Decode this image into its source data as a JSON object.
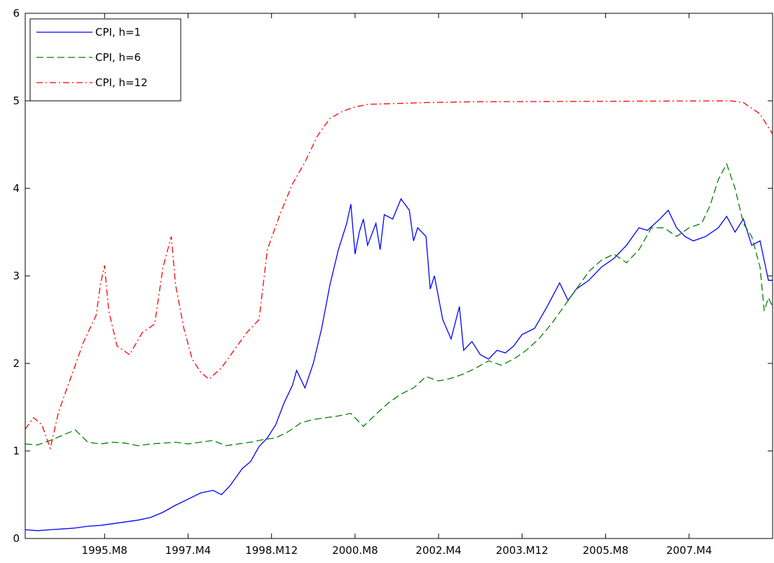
{
  "chart_data": {
    "type": "line",
    "x_tick_labels": [
      "1995.M8",
      "1997.M4",
      "1998.M12",
      "2000.M8",
      "2002.M4",
      "2003.M12",
      "2005.M8",
      "2007.M4"
    ],
    "x_tick_months": [
      "1995-08",
      "1997-04",
      "1998-12",
      "2000-08",
      "2002-04",
      "2003-12",
      "2005-08",
      "2007-04"
    ],
    "xlim": [
      "1994-01",
      "2008-12"
    ],
    "ylim": [
      0,
      6
    ],
    "y_ticks": [
      "0",
      "1",
      "2",
      "3",
      "4",
      "5",
      "6"
    ],
    "grid": false,
    "legend_position": "top-left",
    "series": [
      {
        "name": "CPI, h=1",
        "color": "#0000ff",
        "dash": "solid",
        "points": [
          [
            "1994-01",
            0.1
          ],
          [
            "1994-04",
            0.09
          ],
          [
            "1994-07",
            0.1
          ],
          [
            "1994-10",
            0.11
          ],
          [
            "1995-01",
            0.12
          ],
          [
            "1995-04",
            0.14
          ],
          [
            "1995-07",
            0.15
          ],
          [
            "1995-10",
            0.17
          ],
          [
            "1996-01",
            0.19
          ],
          [
            "1996-04",
            0.21
          ],
          [
            "1996-07",
            0.24
          ],
          [
            "1996-10",
            0.3
          ],
          [
            "1997-01",
            0.38
          ],
          [
            "1997-04",
            0.45
          ],
          [
            "1997-07",
            0.52
          ],
          [
            "1997-10",
            0.55
          ],
          [
            "1997-12",
            0.5
          ],
          [
            "1998-02",
            0.6
          ],
          [
            "1998-05",
            0.8
          ],
          [
            "1998-07",
            0.88
          ],
          [
            "1998-09",
            1.05
          ],
          [
            "1998-11",
            1.15
          ],
          [
            "1999-01",
            1.3
          ],
          [
            "1999-03",
            1.55
          ],
          [
            "1999-05",
            1.75
          ],
          [
            "1999-06",
            1.92
          ],
          [
            "1999-08",
            1.72
          ],
          [
            "1999-10",
            2.0
          ],
          [
            "1999-12",
            2.4
          ],
          [
            "2000-02",
            2.9
          ],
          [
            "2000-04",
            3.3
          ],
          [
            "2000-06",
            3.6
          ],
          [
            "2000-07",
            3.82
          ],
          [
            "2000-08",
            3.25
          ],
          [
            "2000-09",
            3.5
          ],
          [
            "2000-10",
            3.65
          ],
          [
            "2000-11",
            3.35
          ],
          [
            "2001-01",
            3.6
          ],
          [
            "2001-02",
            3.3
          ],
          [
            "2001-03",
            3.7
          ],
          [
            "2001-05",
            3.65
          ],
          [
            "2001-07",
            3.88
          ],
          [
            "2001-09",
            3.75
          ],
          [
            "2001-10",
            3.4
          ],
          [
            "2001-11",
            3.55
          ],
          [
            "2002-01",
            3.45
          ],
          [
            "2002-02",
            2.85
          ],
          [
            "2002-03",
            3.0
          ],
          [
            "2002-05",
            2.5
          ],
          [
            "2002-07",
            2.28
          ],
          [
            "2002-09",
            2.65
          ],
          [
            "2002-10",
            2.15
          ],
          [
            "2002-12",
            2.25
          ],
          [
            "2003-02",
            2.1
          ],
          [
            "2003-04",
            2.05
          ],
          [
            "2003-06",
            2.15
          ],
          [
            "2003-08",
            2.12
          ],
          [
            "2003-10",
            2.2
          ],
          [
            "2003-12",
            2.33
          ],
          [
            "2004-03",
            2.4
          ],
          [
            "2004-06",
            2.65
          ],
          [
            "2004-09",
            2.92
          ],
          [
            "2004-11",
            2.72
          ],
          [
            "2005-01",
            2.85
          ],
          [
            "2005-04",
            2.95
          ],
          [
            "2005-07",
            3.1
          ],
          [
            "2005-10",
            3.2
          ],
          [
            "2006-01",
            3.35
          ],
          [
            "2006-04",
            3.55
          ],
          [
            "2006-06",
            3.52
          ],
          [
            "2006-09",
            3.65
          ],
          [
            "2006-11",
            3.75
          ],
          [
            "2007-01",
            3.55
          ],
          [
            "2007-03",
            3.45
          ],
          [
            "2007-05",
            3.4
          ],
          [
            "2007-08",
            3.45
          ],
          [
            "2007-11",
            3.55
          ],
          [
            "2008-01",
            3.68
          ],
          [
            "2008-03",
            3.5
          ],
          [
            "2008-05",
            3.65
          ],
          [
            "2008-07",
            3.35
          ],
          [
            "2008-09",
            3.4
          ],
          [
            "2008-11",
            2.95
          ],
          [
            "2008-12",
            2.95
          ]
        ]
      },
      {
        "name": "CPI, h=6",
        "color": "#008000",
        "dash": "dashed",
        "points": [
          [
            "1994-01",
            1.08
          ],
          [
            "1994-04",
            1.07
          ],
          [
            "1994-07",
            1.12
          ],
          [
            "1994-10",
            1.18
          ],
          [
            "1995-01",
            1.24
          ],
          [
            "1995-04",
            1.1
          ],
          [
            "1995-07",
            1.08
          ],
          [
            "1995-10",
            1.1
          ],
          [
            "1996-01",
            1.09
          ],
          [
            "1996-04",
            1.06
          ],
          [
            "1996-07",
            1.08
          ],
          [
            "1996-10",
            1.09
          ],
          [
            "1997-01",
            1.1
          ],
          [
            "1997-04",
            1.08
          ],
          [
            "1997-07",
            1.1
          ],
          [
            "1997-10",
            1.12
          ],
          [
            "1998-01",
            1.06
          ],
          [
            "1998-04",
            1.08
          ],
          [
            "1998-07",
            1.1
          ],
          [
            "1998-10",
            1.13
          ],
          [
            "1999-01",
            1.15
          ],
          [
            "1999-04",
            1.22
          ],
          [
            "1999-07",
            1.32
          ],
          [
            "1999-10",
            1.36
          ],
          [
            "2000-01",
            1.38
          ],
          [
            "2000-04",
            1.4
          ],
          [
            "2000-07",
            1.43
          ],
          [
            "2000-10",
            1.28
          ],
          [
            "2001-01",
            1.42
          ],
          [
            "2001-04",
            1.55
          ],
          [
            "2001-07",
            1.65
          ],
          [
            "2001-10",
            1.72
          ],
          [
            "2002-01",
            1.85
          ],
          [
            "2002-04",
            1.8
          ],
          [
            "2002-07",
            1.83
          ],
          [
            "2002-10",
            1.88
          ],
          [
            "2003-01",
            1.95
          ],
          [
            "2003-04",
            2.03
          ],
          [
            "2003-07",
            1.98
          ],
          [
            "2003-10",
            2.05
          ],
          [
            "2004-01",
            2.15
          ],
          [
            "2004-04",
            2.28
          ],
          [
            "2004-07",
            2.45
          ],
          [
            "2004-10",
            2.65
          ],
          [
            "2005-01",
            2.85
          ],
          [
            "2005-04",
            3.05
          ],
          [
            "2005-07",
            3.18
          ],
          [
            "2005-10",
            3.25
          ],
          [
            "2006-01",
            3.15
          ],
          [
            "2006-04",
            3.3
          ],
          [
            "2006-07",
            3.55
          ],
          [
            "2006-10",
            3.55
          ],
          [
            "2007-01",
            3.45
          ],
          [
            "2007-04",
            3.55
          ],
          [
            "2007-07",
            3.6
          ],
          [
            "2007-09",
            3.8
          ],
          [
            "2007-11",
            4.1
          ],
          [
            "2008-01",
            4.28
          ],
          [
            "2008-03",
            4.0
          ],
          [
            "2008-05",
            3.6
          ],
          [
            "2008-07",
            3.45
          ],
          [
            "2008-09",
            3.1
          ],
          [
            "2008-10",
            2.6
          ],
          [
            "2008-11",
            2.75
          ],
          [
            "2008-12",
            2.65
          ]
        ]
      },
      {
        "name": "CPI, h=12",
        "color": "#ff0000",
        "dash": "dashdot",
        "points": [
          [
            "1994-01",
            1.25
          ],
          [
            "1994-03",
            1.38
          ],
          [
            "1994-05",
            1.3
          ],
          [
            "1994-07",
            1.03
          ],
          [
            "1994-09",
            1.45
          ],
          [
            "1994-12",
            1.85
          ],
          [
            "1995-03",
            2.25
          ],
          [
            "1995-06",
            2.55
          ],
          [
            "1995-07",
            2.9
          ],
          [
            "1995-08",
            3.12
          ],
          [
            "1995-09",
            2.6
          ],
          [
            "1995-11",
            2.2
          ],
          [
            "1996-02",
            2.1
          ],
          [
            "1996-05",
            2.35
          ],
          [
            "1996-08",
            2.45
          ],
          [
            "1996-10",
            3.1
          ],
          [
            "1996-12",
            3.45
          ],
          [
            "1997-01",
            2.9
          ],
          [
            "1997-03",
            2.4
          ],
          [
            "1997-05",
            2.05
          ],
          [
            "1997-07",
            1.9
          ],
          [
            "1997-09",
            1.82
          ],
          [
            "1997-12",
            1.95
          ],
          [
            "1998-03",
            2.15
          ],
          [
            "1998-06",
            2.35
          ],
          [
            "1998-09",
            2.5
          ],
          [
            "1998-11",
            3.3
          ],
          [
            "1999-02",
            3.7
          ],
          [
            "1999-05",
            4.05
          ],
          [
            "1999-08",
            4.3
          ],
          [
            "1999-11",
            4.6
          ],
          [
            "2000-02",
            4.8
          ],
          [
            "2000-05",
            4.88
          ],
          [
            "2000-08",
            4.93
          ],
          [
            "2000-11",
            4.96
          ],
          [
            "2001-06",
            4.97
          ],
          [
            "2002-01",
            4.98
          ],
          [
            "2003-01",
            4.99
          ],
          [
            "2008-02",
            5.0
          ],
          [
            "2008-05",
            4.98
          ],
          [
            "2008-09",
            4.85
          ],
          [
            "2008-12",
            4.62
          ]
        ]
      }
    ]
  }
}
